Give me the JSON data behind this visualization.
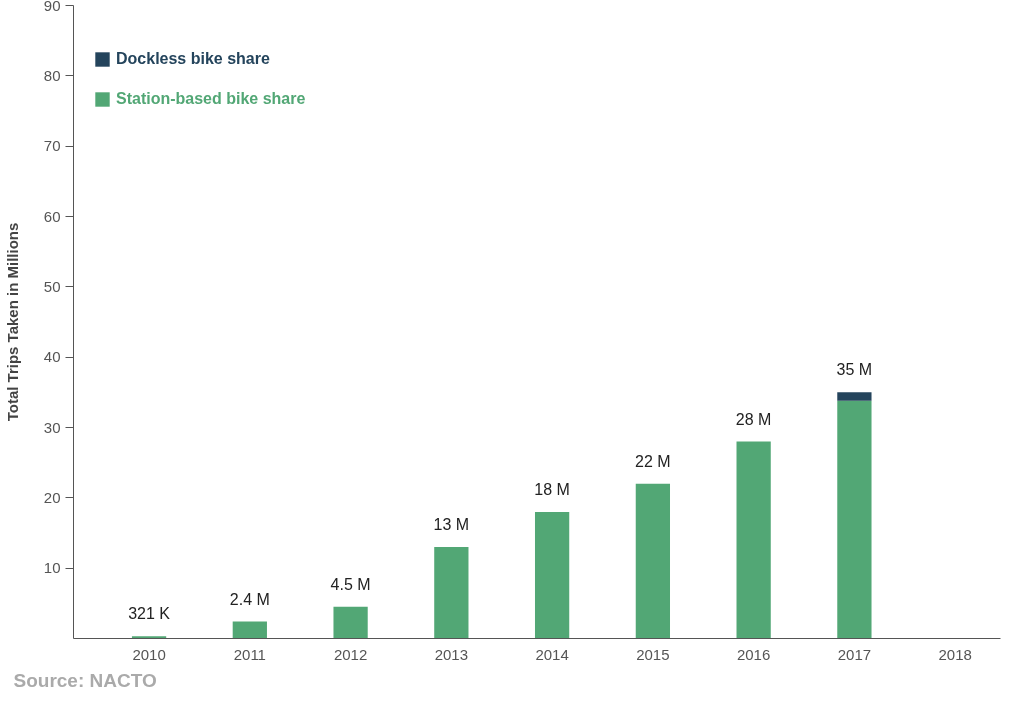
{
  "chart_data": {
    "type": "bar",
    "stacked": true,
    "ylabel": "Total Trips Taken in Millions",
    "categories": [
      "2010",
      "2011",
      "2012",
      "2013",
      "2014",
      "2015",
      "2016",
      "2017",
      "2018"
    ],
    "series": [
      {
        "name": "Station-based bike share",
        "color": "#52a775",
        "values": [
          0.321,
          2.4,
          4.5,
          13,
          18,
          22,
          28,
          33.8,
          null
        ]
      },
      {
        "name": "Dockless bike share",
        "color": "#24445c",
        "values": [
          null,
          null,
          null,
          null,
          null,
          null,
          null,
          1.2,
          null
        ]
      }
    ],
    "totals": [
      "321 K",
      "2.4 M",
      "4.5 M",
      "13 M",
      "18 M",
      "22 M",
      "28 M",
      "35 M",
      null
    ],
    "ylim": [
      0,
      90
    ],
    "yticks": [
      10,
      20,
      30,
      40,
      50,
      60,
      70,
      80,
      90
    ],
    "grid": false,
    "legend": "top left",
    "annotations": [
      "Source: NACTO"
    ]
  }
}
